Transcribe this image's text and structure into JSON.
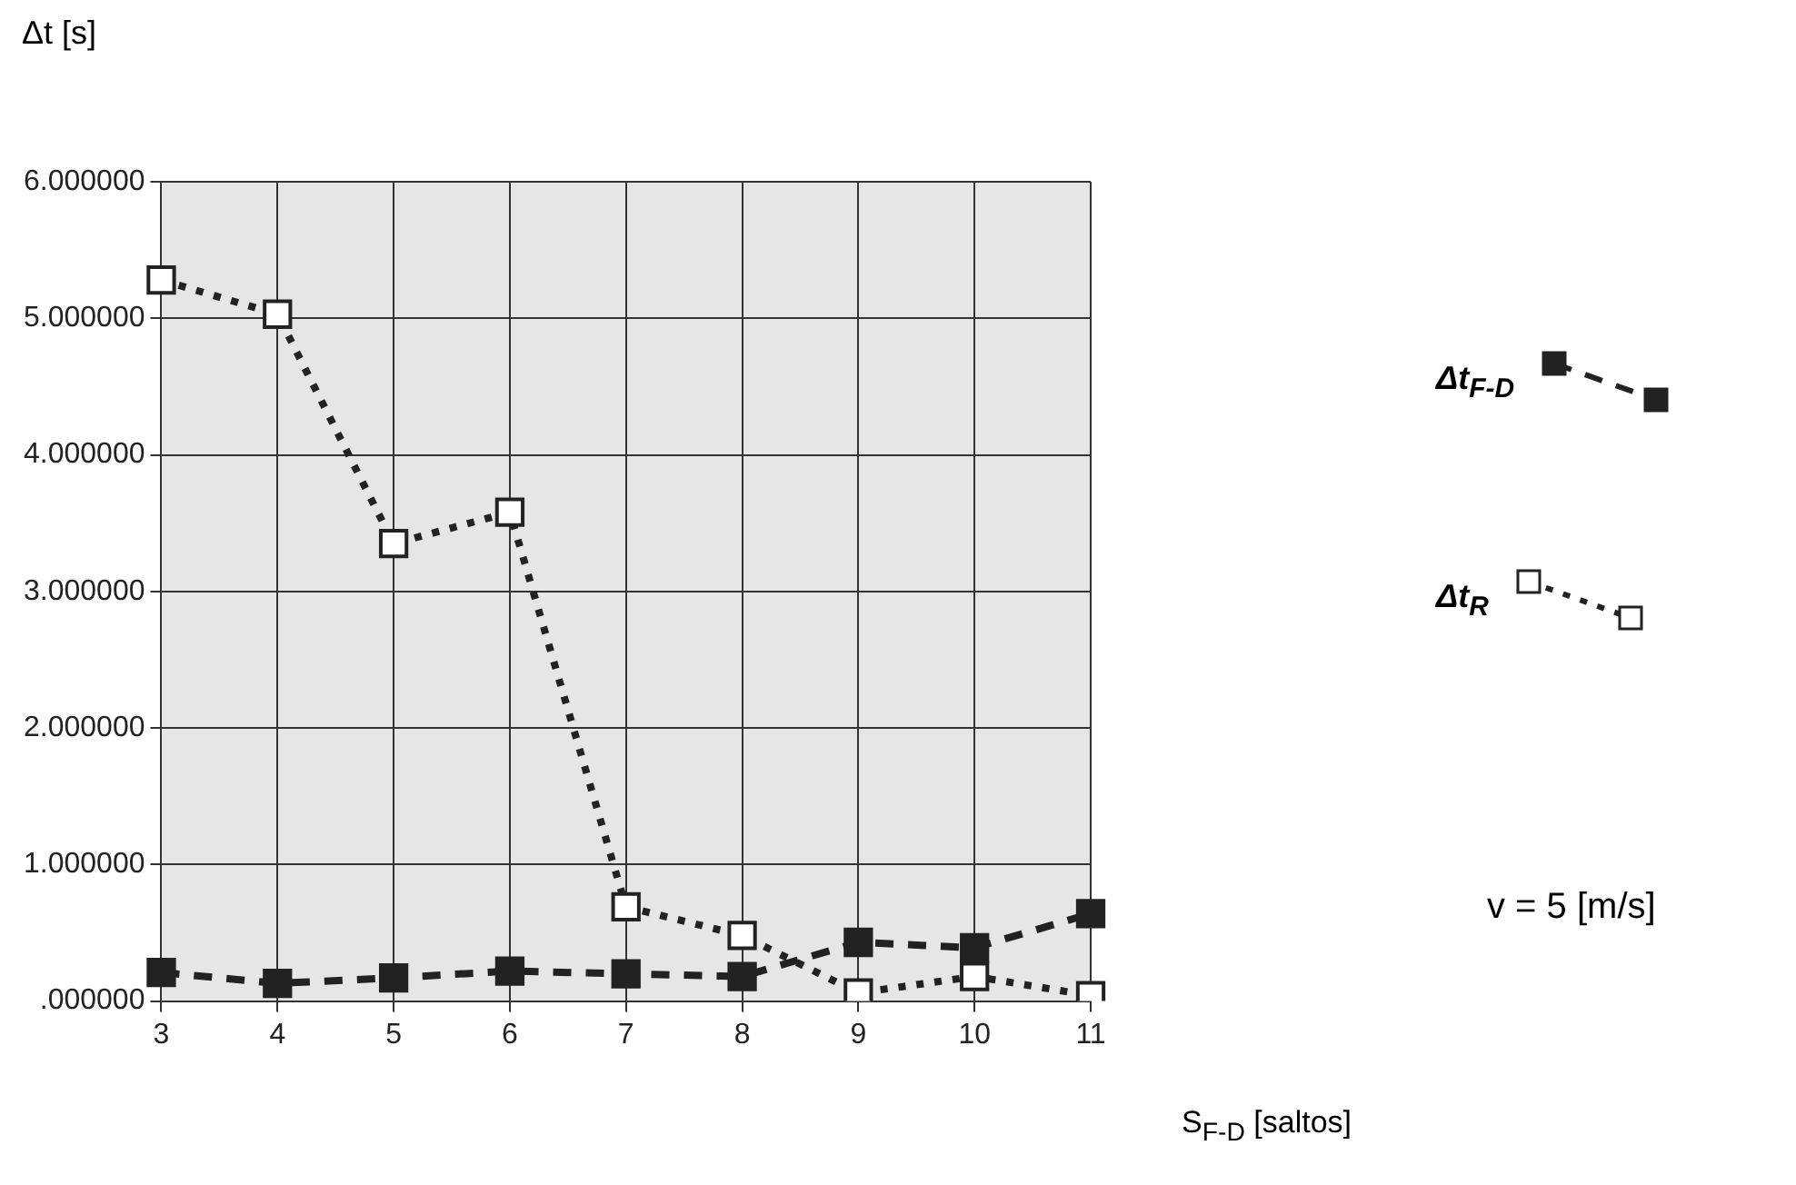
{
  "chart_data": {
    "type": "line",
    "xlabel": "S$_{F-D}$ [saltos]",
    "ylabel": "Δt [s]",
    "categories": [
      "3",
      "4",
      "5",
      "6",
      "7",
      "8",
      "9",
      "10",
      "11"
    ],
    "series": [
      {
        "name": "Δt$_{F-D}$",
        "color": "#222222",
        "line_style": "dashed",
        "values": [
          0.21,
          0.13,
          0.17,
          0.22,
          0.2,
          0.18,
          0.43,
          0.39,
          0.64
        ]
      },
      {
        "name": "Δt$_{R}$",
        "color": "#ffffff",
        "line_style": "dotted",
        "values": [
          5.28,
          5.03,
          3.35,
          3.58,
          0.69,
          0.48,
          0.06,
          0.18,
          0.04
        ]
      }
    ],
    "ylim": [
      0,
      6
    ],
    "yticks": [
      {
        "value": 0,
        "label": ".000000"
      },
      {
        "value": 1,
        "label": "1.000000"
      },
      {
        "value": 2,
        "label": "2.000000"
      },
      {
        "value": 3,
        "label": "3.000000"
      },
      {
        "value": 4,
        "label": "4.000000"
      },
      {
        "value": 5,
        "label": "5.000000"
      },
      {
        "value": 6,
        "label": "6.000000"
      }
    ],
    "grid": true,
    "marker": "square",
    "legend": "right",
    "annotations": [
      "v = 5 [m/s]"
    ]
  }
}
